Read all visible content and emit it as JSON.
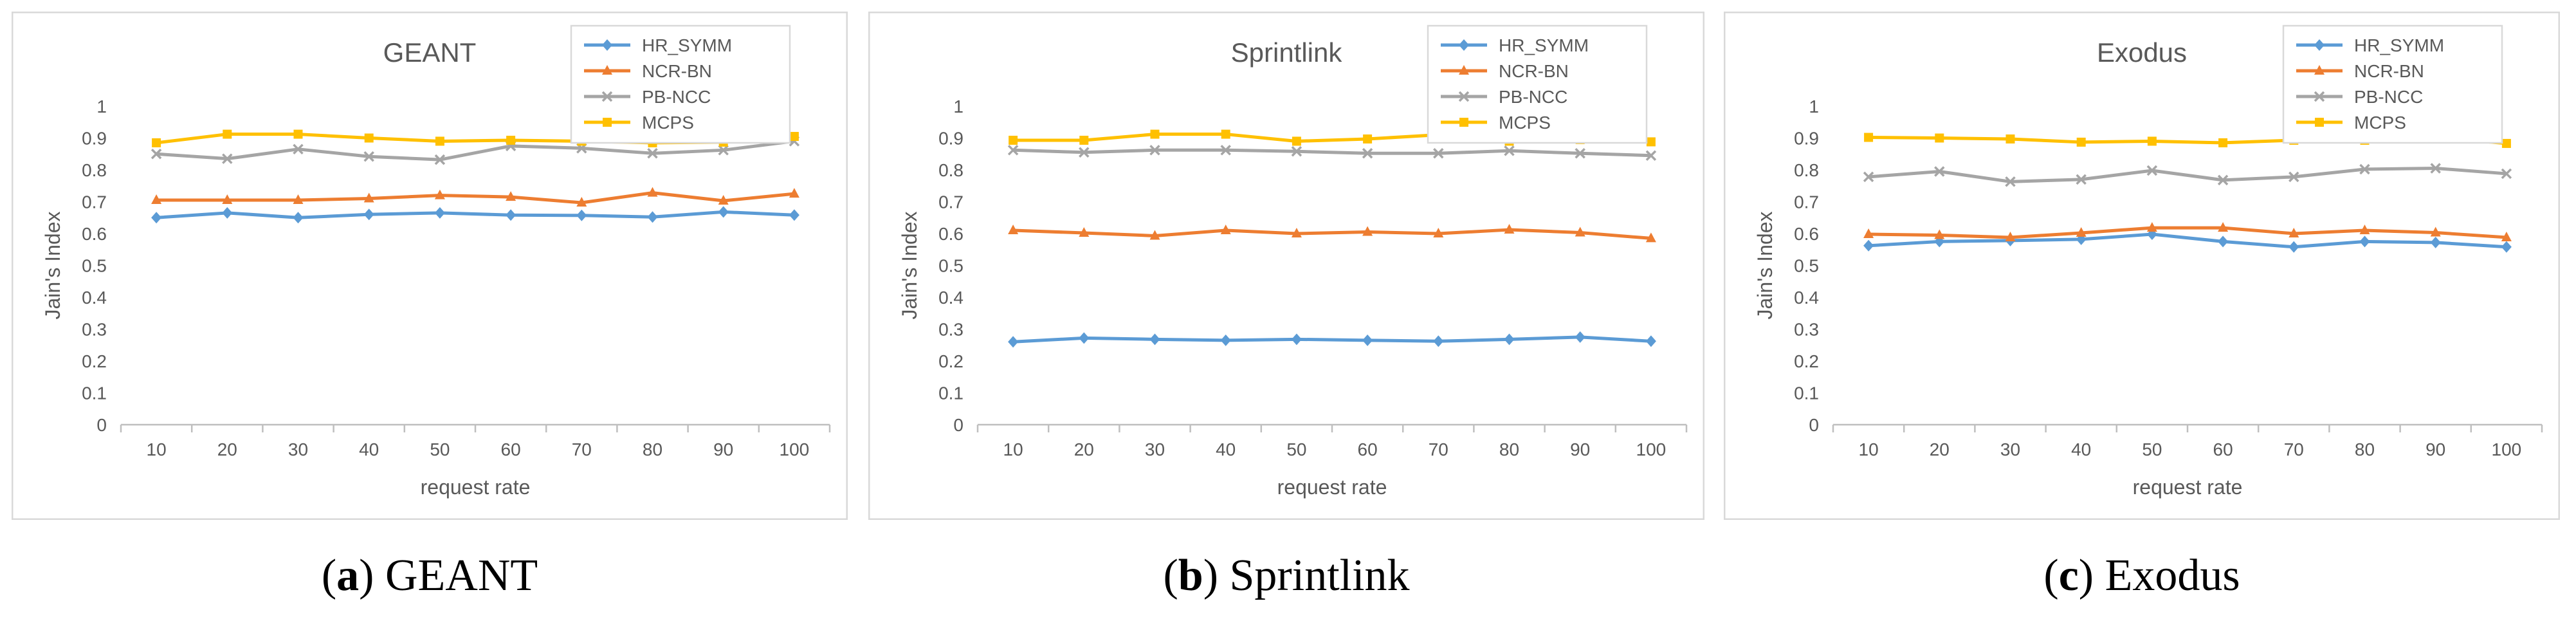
{
  "chart_data": [
    {
      "type": "line",
      "title": "GEANT",
      "caption_tag": "a",
      "caption_text": "GEANT",
      "xlabel": "request rate",
      "ylabel": "Jain's Index",
      "ylim": [
        0,
        1
      ],
      "yticks": [
        "0",
        "0.1",
        "0.2",
        "0.3",
        "0.4",
        "0.5",
        "0.6",
        "0.7",
        "0.8",
        "0.9",
        "1"
      ],
      "categories": [
        "10",
        "20",
        "30",
        "40",
        "50",
        "60",
        "70",
        "80",
        "90",
        "100"
      ],
      "legend_position": "top-right",
      "series": [
        {
          "name": "HR_SYMM",
          "color": "#5B9BD5",
          "marker": "diamond",
          "values": [
            0.65,
            0.665,
            0.65,
            0.66,
            0.665,
            0.658,
            0.657,
            0.652,
            0.668,
            0.658
          ]
        },
        {
          "name": "NCR-BN",
          "color": "#ED7D31",
          "marker": "triangle",
          "values": [
            0.705,
            0.705,
            0.705,
            0.71,
            0.72,
            0.715,
            0.697,
            0.728,
            0.703,
            0.725
          ]
        },
        {
          "name": "PB-NCC",
          "color": "#A5A5A5",
          "marker": "x",
          "values": [
            0.85,
            0.835,
            0.865,
            0.842,
            0.832,
            0.875,
            0.868,
            0.852,
            0.862,
            0.89
          ]
        },
        {
          "name": "MCPS",
          "color": "#FFC000",
          "marker": "square",
          "values": [
            0.885,
            0.912,
            0.912,
            0.9,
            0.89,
            0.893,
            0.89,
            0.885,
            0.887,
            0.905
          ]
        }
      ]
    },
    {
      "type": "line",
      "title": "Sprintlink",
      "caption_tag": "b",
      "caption_text": "Sprintlink",
      "xlabel": "request rate",
      "ylabel": "Jain's Index",
      "ylim": [
        0,
        1
      ],
      "yticks": [
        "0",
        "0.1",
        "0.2",
        "0.3",
        "0.4",
        "0.5",
        "0.6",
        "0.7",
        "0.8",
        "0.9",
        "1"
      ],
      "categories": [
        "10",
        "20",
        "30",
        "40",
        "50",
        "60",
        "70",
        "80",
        "90",
        "100"
      ],
      "legend_position": "top-right",
      "series": [
        {
          "name": "HR_SYMM",
          "color": "#5B9BD5",
          "marker": "diamond",
          "values": [
            0.26,
            0.272,
            0.268,
            0.265,
            0.268,
            0.265,
            0.262,
            0.268,
            0.275,
            0.262
          ]
        },
        {
          "name": "NCR-BN",
          "color": "#ED7D31",
          "marker": "triangle",
          "values": [
            0.61,
            0.602,
            0.593,
            0.61,
            0.6,
            0.605,
            0.6,
            0.612,
            0.603,
            0.585
          ]
        },
        {
          "name": "PB-NCC",
          "color": "#A5A5A5",
          "marker": "x",
          "values": [
            0.862,
            0.855,
            0.862,
            0.862,
            0.858,
            0.852,
            0.852,
            0.86,
            0.852,
            0.845
          ]
        },
        {
          "name": "MCPS",
          "color": "#FFC000",
          "marker": "square",
          "values": [
            0.893,
            0.893,
            0.912,
            0.912,
            0.89,
            0.897,
            0.91,
            0.89,
            0.895,
            0.888
          ]
        }
      ]
    },
    {
      "type": "line",
      "title": "Exodus",
      "caption_tag": "c",
      "caption_text": "Exodus",
      "xlabel": "request rate",
      "ylabel": "Jain's Index",
      "ylim": [
        0,
        1
      ],
      "yticks": [
        "0",
        "0.1",
        "0.2",
        "0.3",
        "0.4",
        "0.5",
        "0.6",
        "0.7",
        "0.8",
        "0.9",
        "1"
      ],
      "categories": [
        "10",
        "20",
        "30",
        "40",
        "50",
        "60",
        "70",
        "80",
        "90",
        "100"
      ],
      "legend_position": "top-right",
      "series": [
        {
          "name": "HR_SYMM",
          "color": "#5B9BD5",
          "marker": "diamond",
          "values": [
            0.562,
            0.575,
            0.578,
            0.582,
            0.598,
            0.575,
            0.558,
            0.575,
            0.572,
            0.558
          ]
        },
        {
          "name": "NCR-BN",
          "color": "#ED7D31",
          "marker": "triangle",
          "values": [
            0.598,
            0.595,
            0.588,
            0.602,
            0.618,
            0.618,
            0.6,
            0.61,
            0.603,
            0.588
          ]
        },
        {
          "name": "PB-NCC",
          "color": "#A5A5A5",
          "marker": "x",
          "values": [
            0.778,
            0.795,
            0.763,
            0.77,
            0.798,
            0.768,
            0.778,
            0.802,
            0.805,
            0.788
          ]
        },
        {
          "name": "MCPS",
          "color": "#FFC000",
          "marker": "square",
          "values": [
            0.902,
            0.9,
            0.897,
            0.887,
            0.89,
            0.885,
            0.893,
            0.893,
            0.902,
            0.883
          ]
        }
      ]
    }
  ]
}
